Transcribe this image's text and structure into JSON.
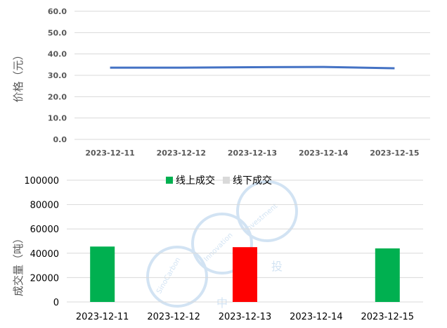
{
  "colors": {
    "price_line": "#4472C4",
    "online_bar": "#00B050",
    "offline_bar": "#D9D9D9",
    "highlight_bar": "#FF0000",
    "grid": "#D9D9D9",
    "watermark": "#9DC3E6"
  },
  "watermark": {
    "text_1": "SinoCarbon",
    "text_2": "Innovation",
    "text_3": "Investment",
    "text_4": "中",
    "text_5": "投"
  },
  "chart_data": [
    {
      "type": "line",
      "ylabel": "价格（元）",
      "ylim": [
        0,
        60
      ],
      "yticks": [
        "0.0",
        "10.0",
        "20.0",
        "30.0",
        "40.0",
        "50.0",
        "60.0"
      ],
      "categories": [
        "2023-12-11",
        "2023-12-12",
        "2023-12-13",
        "2023-12-14",
        "2023-12-15"
      ],
      "series": [
        {
          "values": [
            33.6,
            33.6,
            33.8,
            33.9,
            33.3
          ]
        }
      ],
      "grid": true
    },
    {
      "type": "bar",
      "ylabel": "成交量（吨）",
      "ylim": [
        0,
        100000
      ],
      "yticks": [
        "0",
        "20000",
        "40000",
        "60000",
        "80000",
        "100000"
      ],
      "categories": [
        "2023-12-11",
        "2023-12-12",
        "2023-12-13",
        "2023-12-14",
        "2023-12-15"
      ],
      "series": [
        {
          "name": "线上成交",
          "values": [
            45500,
            null,
            45000,
            null,
            44000
          ]
        },
        {
          "name": "线下成交",
          "values": [
            null,
            null,
            null,
            null,
            null
          ]
        }
      ],
      "highlight_index": 2,
      "legend_position": "top",
      "grid": true
    }
  ]
}
